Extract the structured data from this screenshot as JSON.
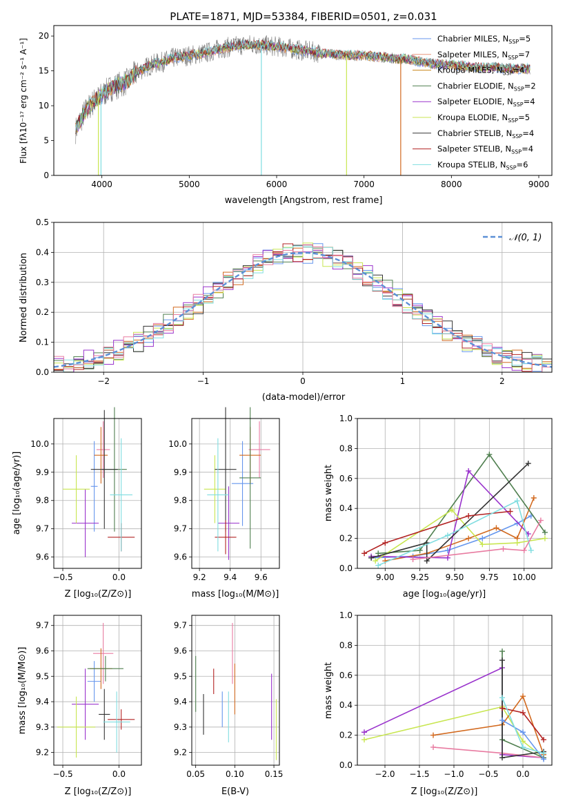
{
  "chart_data": [
    {
      "id": "spectrum",
      "type": "line",
      "title": "PLATE=1871, MJD=53384, FIBERID=0501, z=0.031",
      "xlabel": "wavelength [Angstrom, rest frame]",
      "ylabel": "Flux [fλ10⁻¹⁷ erg cm⁻² s⁻¹ A⁻¹]",
      "xlim": [
        3450,
        9150
      ],
      "ylim": [
        0,
        21.5
      ],
      "xticks": [
        "4000",
        "5000",
        "6000",
        "7000",
        "8000",
        "9000"
      ],
      "yticks": [
        "0",
        "5",
        "10",
        "15",
        "20"
      ],
      "continuum": [
        [
          3700,
          6.5
        ],
        [
          3800,
          9
        ],
        [
          3900,
          10.5
        ],
        [
          4000,
          11.5
        ],
        [
          4100,
          12.5
        ],
        [
          4200,
          13
        ],
        [
          4300,
          13.5
        ],
        [
          4400,
          14.8
        ],
        [
          4500,
          15.5
        ],
        [
          4600,
          16
        ],
        [
          4700,
          16.3
        ],
        [
          4800,
          16.8
        ],
        [
          4900,
          17
        ],
        [
          5000,
          17.2
        ],
        [
          5100,
          17.4
        ],
        [
          5200,
          17.6
        ],
        [
          5300,
          18
        ],
        [
          5400,
          18.3
        ],
        [
          5500,
          18.5
        ],
        [
          5600,
          18.7
        ],
        [
          5700,
          18.8
        ],
        [
          5800,
          18.7
        ],
        [
          5900,
          18.6
        ],
        [
          6000,
          18.5
        ],
        [
          6100,
          18.3
        ],
        [
          6200,
          18.1
        ],
        [
          6300,
          17.9
        ],
        [
          6400,
          17.8
        ],
        [
          6500,
          17.5
        ],
        [
          6600,
          17.4
        ],
        [
          6700,
          17.3
        ],
        [
          6800,
          17.3
        ],
        [
          6900,
          17.2
        ],
        [
          7000,
          17.2
        ],
        [
          7100,
          17.1
        ],
        [
          7200,
          17.0
        ],
        [
          7300,
          16.9
        ],
        [
          7400,
          16.7
        ],
        [
          7500,
          16.7
        ],
        [
          7600,
          16.4
        ],
        [
          7700,
          16.2
        ],
        [
          7800,
          16.0
        ],
        [
          7900,
          15.9
        ],
        [
          8000,
          15.9
        ],
        [
          8100,
          15.7
        ],
        [
          8200,
          15.6
        ],
        [
          8300,
          15.5
        ],
        [
          8400,
          15.4
        ],
        [
          8500,
          15.5
        ],
        [
          8600,
          15.4
        ],
        [
          8700,
          15.3
        ],
        [
          8800,
          15.3
        ],
        [
          8900,
          15.3
        ]
      ],
      "series": [
        {
          "label": "Chabrier MILES, N",
          "sub": "SSP",
          "suffix": "=5",
          "color": "#6495ed"
        },
        {
          "label": "Salpeter MILES, N",
          "sub": "SSP",
          "suffix": "=7",
          "color": "#e9967a"
        },
        {
          "label": "Kroupa MILES, N",
          "sub": "SSP",
          "suffix": "=4",
          "color": "#c88418"
        },
        {
          "label": "Chabrier ELODIE, N",
          "sub": "SSP",
          "suffix": "=2",
          "color": "#4f7f4f"
        },
        {
          "label": "Salpeter ELODIE, N",
          "sub": "SSP",
          "suffix": "=4",
          "color": "#9932cc"
        },
        {
          "label": "Kroupa ELODIE, N",
          "sub": "SSP",
          "suffix": "=5",
          "color": "#c8e650"
        },
        {
          "label": "Chabrier STELIB, N",
          "sub": "SSP",
          "suffix": "=4",
          "color": "#333333"
        },
        {
          "label": "Salpeter STELIB, N",
          "sub": "SSP",
          "suffix": "=4",
          "color": "#b22222"
        },
        {
          "label": "Kroupa STELIB, N",
          "sub": "SSP",
          "suffix": "=6",
          "color": "#7fdde0"
        }
      ],
      "dropouts": [
        {
          "x": 3960,
          "color": "#c8e650"
        },
        {
          "x": 5825,
          "color": "#7fdde0"
        },
        {
          "x": 6800,
          "color": "#c8e650"
        },
        {
          "x": 7420,
          "color": "#d2691e"
        },
        {
          "x": 3990,
          "color": "#7fdde0"
        }
      ]
    },
    {
      "id": "residuals",
      "type": "bar",
      "xlabel": "(data-model)/error",
      "ylabel": "Normed distribution",
      "xlim": [
        -2.5,
        2.5
      ],
      "ylim": [
        0,
        0.5
      ],
      "xticks": [
        "−2",
        "−1",
        "0",
        "1",
        "2"
      ],
      "yticks": [
        "0.0",
        "0.1",
        "0.2",
        "0.3",
        "0.4",
        "0.5"
      ],
      "legend": "𝒩(0, 1)",
      "bin_width": 0.1,
      "colors": [
        "#6495ed",
        "#d2691e",
        "#4f7f4f",
        "#9932cc",
        "#c8e650",
        "#333333",
        "#b22222",
        "#7fdde0",
        "#e87aa0"
      ]
    },
    {
      "id": "age-z",
      "type": "scatter",
      "xlabel": "Z [log₁₀(Z/Z⊙)]",
      "ylabel": "age  [log₁₀(age/yr)]",
      "xlim": [
        -0.58,
        0.2
      ],
      "ylim": [
        9.56,
        10.09
      ],
      "xticks": [
        "−0.5",
        "0.0"
      ],
      "yticks": [
        "9.6",
        "9.7",
        "9.8",
        "9.9",
        "10.0"
      ],
      "points": [
        {
          "x": -0.22,
          "y": 9.85,
          "xe": 0.03,
          "ye": 0.16,
          "color": "#6495ed"
        },
        {
          "x": -0.14,
          "y": 9.98,
          "xe": 0.06,
          "ye": 0.1,
          "color": "#e87aa0"
        },
        {
          "x": -0.16,
          "y": 9.96,
          "xe": 0.06,
          "ye": 0.1,
          "color": "#d2691e"
        },
        {
          "x": -0.04,
          "y": 9.91,
          "xe": 0.11,
          "ye": 0.22,
          "color": "#4f7f4f"
        },
        {
          "x": -0.3,
          "y": 9.72,
          "xe": 0.12,
          "ye": 0.12,
          "color": "#9932cc"
        },
        {
          "x": -0.38,
          "y": 9.84,
          "xe": 0.12,
          "ye": 0.12,
          "color": "#c8e650"
        },
        {
          "x": -0.13,
          "y": 9.91,
          "xe": 0.12,
          "ye": 0.21,
          "color": "#333333"
        },
        {
          "x": 0.02,
          "y": 9.67,
          "xe": 0.12,
          "ye": 0.05,
          "color": "#b22222"
        },
        {
          "x": 0.02,
          "y": 9.82,
          "xe": 0.1,
          "ye": 0.2,
          "color": "#7fdde0"
        }
      ]
    },
    {
      "id": "age-mass",
      "type": "scatter",
      "xlabel": "mass [log₁₀(M/M⊙)]",
      "ylabel": "",
      "xlim": [
        9.15,
        9.72
      ],
      "ylim": [
        9.56,
        10.09
      ],
      "xticks": [
        "9.2",
        "9.4",
        "9.6"
      ],
      "yticks": [
        "9.6",
        "9.7",
        "9.8",
        "9.9",
        "10.0"
      ],
      "points": [
        {
          "x": 9.48,
          "y": 9.86,
          "xe": 0.07,
          "ye": 0.15,
          "color": "#6495ed"
        },
        {
          "x": 9.59,
          "y": 9.98,
          "xe": 0.07,
          "ye": 0.1,
          "color": "#e87aa0"
        },
        {
          "x": 9.53,
          "y": 9.96,
          "xe": 0.07,
          "ye": 0.1,
          "color": "#d2691e"
        },
        {
          "x": 9.53,
          "y": 9.88,
          "xe": 0.07,
          "ye": 0.25,
          "color": "#4f7f4f"
        },
        {
          "x": 9.39,
          "y": 9.72,
          "xe": 0.07,
          "ye": 0.13,
          "color": "#9932cc"
        },
        {
          "x": 9.3,
          "y": 9.84,
          "xe": 0.07,
          "ye": 0.12,
          "color": "#c8e650"
        },
        {
          "x": 9.37,
          "y": 9.91,
          "xe": 0.07,
          "ye": 0.22,
          "color": "#333333"
        },
        {
          "x": 9.37,
          "y": 9.67,
          "xe": 0.07,
          "ye": 0.06,
          "color": "#b22222"
        },
        {
          "x": 9.32,
          "y": 9.82,
          "xe": 0.07,
          "ye": 0.2,
          "color": "#7fdde0"
        }
      ]
    },
    {
      "id": "weight-age",
      "type": "line",
      "xlabel": "age  [log₁₀(age/yr)]",
      "ylabel": "mass weight",
      "xlim": [
        8.8,
        10.2
      ],
      "ylim": [
        0,
        1
      ],
      "xticks": [
        "9.00",
        "9.25",
        "9.50",
        "9.75",
        "10.00"
      ],
      "yticks": [
        "0.0",
        "0.2",
        "0.4",
        "0.6",
        "0.8",
        "1.0"
      ],
      "series": [
        {
          "color": "#6495ed",
          "pts": [
            [
              8.9,
              0.07
            ],
            [
              9.2,
              0.08
            ],
            [
              9.45,
              0.12
            ],
            [
              9.7,
              0.2
            ],
            [
              9.95,
              0.3
            ],
            [
              10.05,
              0.35
            ]
          ]
        },
        {
          "color": "#d2691e",
          "pts": [
            [
              9.0,
              0.05
            ],
            [
              9.3,
              0.1
            ],
            [
              9.6,
              0.2
            ],
            [
              9.8,
              0.27
            ],
            [
              9.95,
              0.2
            ],
            [
              10.07,
              0.47
            ]
          ]
        },
        {
          "color": "#4f7f4f",
          "pts": [
            [
              8.95,
              0.1
            ],
            [
              9.25,
              0.12
            ],
            [
              9.75,
              0.76
            ],
            [
              10.15,
              0.24
            ]
          ]
        },
        {
          "color": "#9932cc",
          "pts": [
            [
              8.9,
              0.08
            ],
            [
              9.45,
              0.07
            ],
            [
              9.6,
              0.65
            ],
            [
              10.03,
              0.23
            ]
          ]
        },
        {
          "color": "#c8e650",
          "pts": [
            [
              8.93,
              0.05
            ],
            [
              9.48,
              0.39
            ],
            [
              9.7,
              0.16
            ],
            [
              9.95,
              0.17
            ],
            [
              10.15,
              0.2
            ]
          ]
        },
        {
          "color": "#333333",
          "pts": [
            [
              8.9,
              0.07
            ],
            [
              9.3,
              0.17
            ],
            [
              9.3,
              0.05
            ],
            [
              10.03,
              0.7
            ]
          ]
        },
        {
          "color": "#b22222",
          "pts": [
            [
              8.85,
              0.1
            ],
            [
              9.0,
              0.17
            ],
            [
              9.6,
              0.35
            ],
            [
              9.9,
              0.38
            ]
          ]
        },
        {
          "color": "#7fdde0",
          "pts": [
            [
              8.95,
              0.02
            ],
            [
              9.45,
              0.22
            ],
            [
              9.95,
              0.45
            ],
            [
              10.05,
              0.12
            ]
          ]
        },
        {
          "color": "#e87aa0",
          "pts": [
            [
              9.2,
              0.06
            ],
            [
              9.85,
              0.13
            ],
            [
              10.0,
              0.12
            ],
            [
              10.12,
              0.32
            ]
          ]
        }
      ]
    },
    {
      "id": "mass-z",
      "type": "scatter",
      "xlabel": "Z [log₁₀(Z/Z⊙)]",
      "ylabel": "mass [log₁₀(M/M⊙)]",
      "xlim": [
        -0.58,
        0.2
      ],
      "ylim": [
        9.15,
        9.74
      ],
      "xticks": [
        "−0.5",
        "0.0"
      ],
      "yticks": [
        "9.2",
        "9.3",
        "9.4",
        "9.5",
        "9.6",
        "9.7"
      ],
      "points": [
        {
          "x": -0.22,
          "y": 9.48,
          "xe": 0.06,
          "ye": 0.08,
          "color": "#6495ed"
        },
        {
          "x": -0.14,
          "y": 9.59,
          "xe": 0.09,
          "ye": 0.12,
          "color": "#e87aa0"
        },
        {
          "x": -0.16,
          "y": 9.53,
          "xe": 0.1,
          "ye": 0.08,
          "color": "#d2691e"
        },
        {
          "x": -0.12,
          "y": 9.53,
          "xe": 0.16,
          "ye": 0.05,
          "color": "#4f7f4f"
        },
        {
          "x": -0.3,
          "y": 9.39,
          "xe": 0.12,
          "ye": 0.14,
          "color": "#9932cc"
        },
        {
          "x": -0.38,
          "y": 9.3,
          "xe": 0.17,
          "ye": 0.12,
          "color": "#c8e650"
        },
        {
          "x": -0.13,
          "y": 9.35,
          "xe": 0.05,
          "ye": 0.1,
          "color": "#333333"
        },
        {
          "x": 0.02,
          "y": 9.33,
          "xe": 0.12,
          "ye": 0.04,
          "color": "#b22222"
        },
        {
          "x": -0.02,
          "y": 9.32,
          "xe": 0.12,
          "ye": 0.12,
          "color": "#7fdde0"
        }
      ]
    },
    {
      "id": "mass-ebv",
      "type": "scatter",
      "xlabel": "E(B-V)",
      "ylabel": "",
      "xlim": [
        0.045,
        0.157
      ],
      "ylim": [
        9.15,
        9.74
      ],
      "xticks": [
        "0.05",
        "0.10",
        "0.15"
      ],
      "yticks": [
        "9.2",
        "9.3",
        "9.4",
        "9.5",
        "9.6",
        "9.7"
      ],
      "points": [
        {
          "x": 0.05,
          "y": 9.47,
          "xe": 0,
          "ye": 0.11,
          "color": "#4f7f4f"
        },
        {
          "x": 0.06,
          "y": 9.35,
          "xe": 0,
          "ye": 0.08,
          "color": "#333333"
        },
        {
          "x": 0.073,
          "y": 9.48,
          "xe": 0,
          "ye": 0.05,
          "color": "#b22222"
        },
        {
          "x": 0.084,
          "y": 9.37,
          "xe": 0,
          "ye": 0.07,
          "color": "#6495ed"
        },
        {
          "x": 0.092,
          "y": 9.34,
          "xe": 0,
          "ye": 0.1,
          "color": "#7fdde0"
        },
        {
          "x": 0.097,
          "y": 9.59,
          "xe": 0,
          "ye": 0.12,
          "color": "#e87aa0"
        },
        {
          "x": 0.1,
          "y": 9.45,
          "xe": 0,
          "ye": 0.1,
          "color": "#d2691e"
        },
        {
          "x": 0.147,
          "y": 9.38,
          "xe": 0,
          "ye": 0.13,
          "color": "#9932cc"
        },
        {
          "x": 0.153,
          "y": 9.29,
          "xe": 0,
          "ye": 0.12,
          "color": "#c8e650"
        }
      ]
    },
    {
      "id": "weight-z",
      "type": "line",
      "xlabel": "Z [log₁₀(Z/Z⊙)]",
      "ylabel": "mass weight",
      "xlim": [
        -2.4,
        0.42
      ],
      "ylim": [
        0,
        1
      ],
      "xticks": [
        "−2.0",
        "−1.5",
        "−1.0",
        "−0.5",
        "0.0"
      ],
      "yticks": [
        "0.0",
        "0.2",
        "0.4",
        "0.6",
        "0.8",
        "1.0"
      ],
      "series": [
        {
          "color": "#9932cc",
          "pts": [
            [
              -2.3,
              0.22
            ],
            [
              -0.3,
              0.65
            ],
            [
              -0.3,
              0.07
            ],
            [
              0.3,
              0.05
            ]
          ]
        },
        {
          "color": "#c8e650",
          "pts": [
            [
              -2.3,
              0.17
            ],
            [
              -0.3,
              0.39
            ],
            [
              0.0,
              0.16
            ],
            [
              0.3,
              0.05
            ]
          ]
        },
        {
          "color": "#d2691e",
          "pts": [
            [
              -1.3,
              0.2
            ],
            [
              -0.3,
              0.27
            ],
            [
              0.0,
              0.46
            ],
            [
              0.3,
              0.07
            ]
          ]
        },
        {
          "color": "#e87aa0",
          "pts": [
            [
              -1.3,
              0.12
            ],
            [
              -0.3,
              0.08
            ],
            [
              0.3,
              0.05
            ]
          ]
        },
        {
          "color": "#4f7f4f",
          "pts": [
            [
              -0.3,
              0.76
            ],
            [
              -0.3,
              0.17
            ],
            [
              0.3,
              0.05
            ]
          ]
        },
        {
          "color": "#333333",
          "pts": [
            [
              -0.3,
              0.7
            ],
            [
              -0.3,
              0.05
            ],
            [
              0.3,
              0.09
            ]
          ]
        },
        {
          "color": "#b22222",
          "pts": [
            [
              -0.3,
              0.38
            ],
            [
              0.0,
              0.35
            ],
            [
              0.3,
              0.17
            ]
          ]
        },
        {
          "color": "#6495ed",
          "pts": [
            [
              -0.3,
              0.3
            ],
            [
              0.0,
              0.22
            ],
            [
              0.3,
              0.04
            ]
          ]
        },
        {
          "color": "#7fdde0",
          "pts": [
            [
              -0.3,
              0.45
            ],
            [
              0.0,
              0.12
            ],
            [
              0.3,
              0.08
            ]
          ]
        }
      ]
    }
  ]
}
